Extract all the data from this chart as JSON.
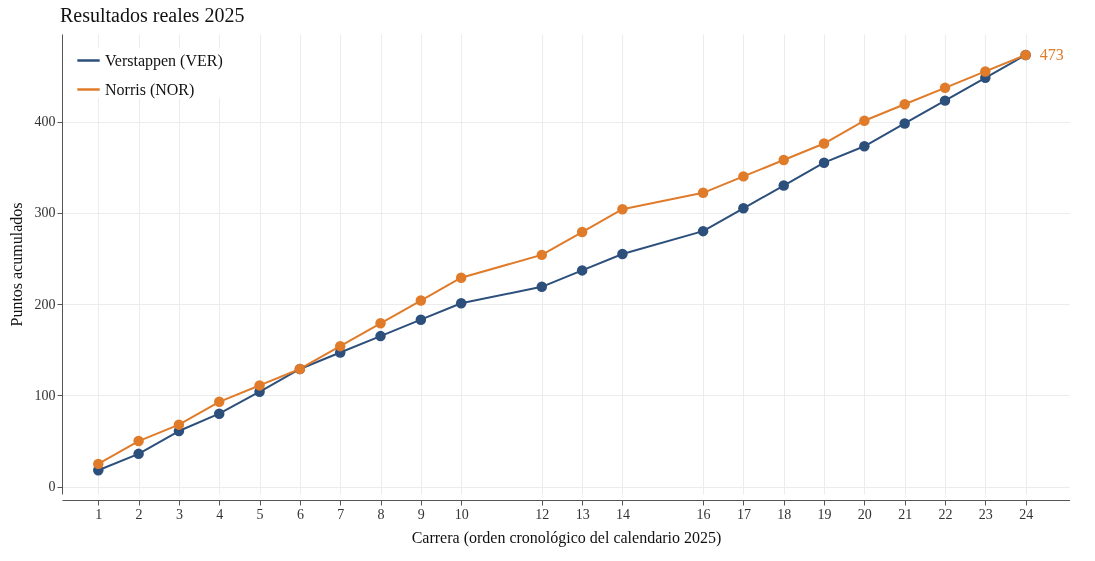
{
  "chart_data": {
    "type": "line",
    "title": "Resultados reales 2025",
    "xlabel": "Carrera (orden cronológico del calendario 2025)",
    "ylabel": "Puntos acumulados",
    "x": [
      1,
      2,
      3,
      4,
      5,
      6,
      7,
      8,
      9,
      10,
      12,
      13,
      14,
      16,
      17,
      18,
      19,
      20,
      21,
      22,
      23,
      24
    ],
    "series": [
      {
        "name": "Verstappen (VER)",
        "color": "#2c4f7c",
        "values": [
          18,
          36,
          61,
          80,
          104,
          129,
          147,
          165,
          183,
          201,
          219,
          237,
          255,
          280,
          305,
          330,
          355,
          373,
          398,
          423,
          448,
          473
        ]
      },
      {
        "name": "Norris (NOR)",
        "color": "#e07b2a",
        "values": [
          25,
          50,
          68,
          93,
          111,
          129,
          154,
          179,
          204,
          229,
          254,
          279,
          304,
          322,
          340,
          358,
          376,
          401,
          419,
          437,
          455,
          473
        ]
      }
    ],
    "xlim": [
      0.1,
      25.1
    ],
    "xticks": [
      1,
      2,
      3,
      4,
      5,
      6,
      7,
      8,
      9,
      10,
      12,
      13,
      14,
      16,
      17,
      18,
      19,
      20,
      21,
      22,
      23,
      24
    ],
    "ylim": [
      -8,
      496
    ],
    "yticks": [
      0,
      100,
      200,
      300,
      400
    ],
    "grid": true,
    "legend": "top left",
    "marker": "circle",
    "line_style": "solid",
    "annotations": [
      {
        "text": "473",
        "x": 24,
        "y": 473
      }
    ]
  }
}
